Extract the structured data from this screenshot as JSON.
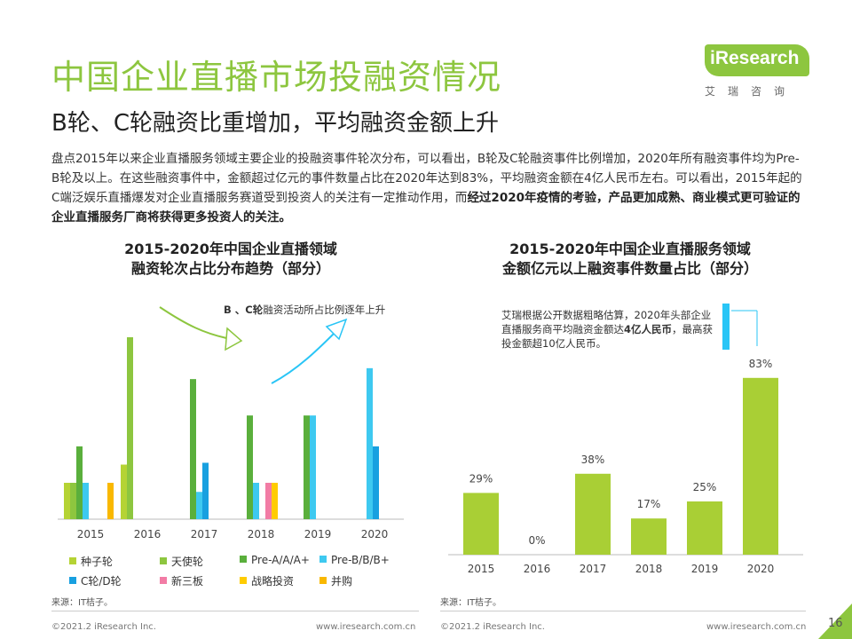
{
  "header": {
    "title": "中国企业直播市场投融资情况",
    "subtitle": "B轮、C轮融资比重增加，平均融资金额上升"
  },
  "logo": {
    "text": "iResearch",
    "cn": "艾瑞咨询"
  },
  "description": {
    "p1": "盘点2015年以来企业直播服务领域主要企业的投融资事件轮次分布，可以看出，B轮及C轮融资事件比例增加，2020年所有融资事件均为Pre-B轮及以上。在这些融资事件中，金额超过亿元的事件数量占比在2020年达到83%，平均融资金额在4亿人民币左右。可以看出，2015年起的C端泛娱乐直播爆发对企业直播服务赛道受到投资人的关注有一定推动作用，而",
    "p2_bold": "经过2020年疫情的考验，产品更加成熟、商业模式更可验证的企业直播服务厂商将获得更多投资人的关注。"
  },
  "chart1_title": {
    "line1": "2015-2020年中国企业直播领域",
    "line2": "融资轮次占比分布趋势（部分）"
  },
  "chart2_title": {
    "line1": "2015-2020年中国企业直播服务领域",
    "line2": "金额亿元以上融资事件数量占比（部分）"
  },
  "annotation1": {
    "bold": "B 、C轮",
    "text": "融资活动所占比例逐年上升"
  },
  "annotation2": {
    "text": "艾瑞根据公开数据粗略估算，2020年头部企业直播服务商平均融资金额达",
    "bold": "4亿人民币",
    "text2": "，最高获投金额超10亿人民币。"
  },
  "source1": "来源：IT桔子。",
  "source2": "来源：IT桔子。",
  "footer": {
    "copy1": "©2021.2 iResearch Inc.",
    "url1": "www.iresearch.com.cn",
    "copy2": "©2021.2 iResearch Inc.",
    "url2": "www.iresearch.com.cn"
  },
  "page_number": "16",
  "colors": {
    "accent": "#8dc63f",
    "seed": "#b5d334",
    "angel": "#8dc63f",
    "preA": "#5aaf3c",
    "preB": "#3ec9f0",
    "cd": "#18a0e0",
    "neeq": "#f27ca5",
    "strategic": "#ffcc00",
    "ma": "#f9b800",
    "bar2": "#a9cf35",
    "corner": "#8dc63f"
  },
  "chart_data": [
    {
      "type": "bar",
      "categories": [
        "2015",
        "2016",
        "2017",
        "2018",
        "2019",
        "2020"
      ],
      "ylim": [
        0,
        1
      ],
      "series": [
        {
          "name": "种子轮",
          "values": [
            0.2,
            0.3,
            0,
            0,
            0,
            0
          ]
        },
        {
          "name": "天使轮",
          "values": [
            0.2,
            1.0,
            0,
            0,
            0,
            0
          ]
        },
        {
          "name": "Pre-A/A/A+",
          "values": [
            0.4,
            0,
            0.77,
            0.57,
            0.57,
            0
          ]
        },
        {
          "name": "Pre-B/B/B+",
          "values": [
            0.2,
            0,
            0.15,
            0.2,
            0.57,
            0.83
          ]
        },
        {
          "name": "C轮/D轮",
          "values": [
            0,
            0,
            0.31,
            0,
            0,
            0.4
          ]
        },
        {
          "name": "新三板",
          "values": [
            0,
            0,
            0,
            0.2,
            0,
            0
          ]
        },
        {
          "name": "战略投资",
          "values": [
            0,
            0,
            0,
            0.2,
            0,
            0
          ]
        },
        {
          "name": "并购",
          "values": [
            0.2,
            0,
            0,
            0,
            0,
            0
          ]
        }
      ]
    },
    {
      "type": "bar",
      "categories": [
        "2015",
        "2016",
        "2017",
        "2018",
        "2019",
        "2020"
      ],
      "values": [
        29,
        0,
        38,
        17,
        25,
        83
      ],
      "labels": [
        "29%",
        "0%",
        "38%",
        "17%",
        "25%",
        "83%"
      ],
      "ylim": [
        0,
        100
      ]
    }
  ]
}
